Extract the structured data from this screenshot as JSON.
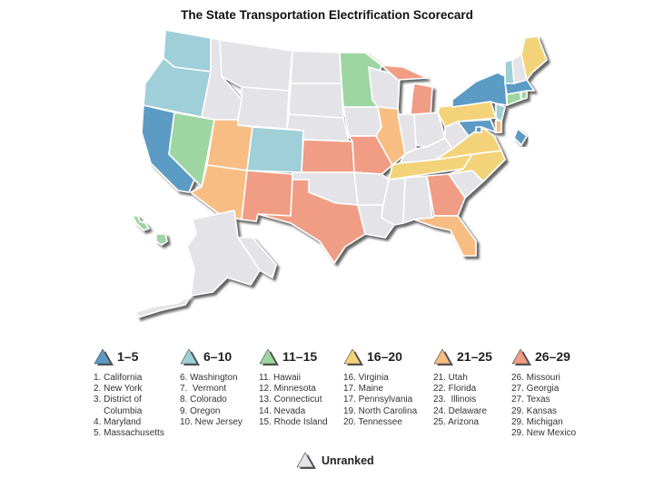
{
  "title": "The State Transportation Electrification Scorecard",
  "colors": {
    "tier_1_5": "#5b9bc4",
    "tier_6_10": "#9fcfd8",
    "tier_11_15": "#9ed6a2",
    "tier_16_20": "#f3d37a",
    "tier_21_25": "#f7bd82",
    "tier_26_29": "#f19c84",
    "unranked": "#e4e4e8",
    "shadow": "#555555"
  },
  "legend": [
    {
      "label": "1–5",
      "color_key": "tier_1_5",
      "items": [
        "1. California",
        "2. New York",
        "3. District of",
        "    Columbia",
        "4. Maryland",
        "5. Massachusetts"
      ]
    },
    {
      "label": "6–10",
      "color_key": "tier_6_10",
      "items": [
        "6. Washington",
        "7.  Vermont",
        "8. Colorado",
        "9. Oregon",
        "10. New Jersey"
      ]
    },
    {
      "label": "11–15",
      "color_key": "tier_11_15",
      "items": [
        "11. Hawaii",
        "12. Minnesota",
        "13. Connecticut",
        "14. Nevada",
        "15. Rhode Island"
      ]
    },
    {
      "label": "16–20",
      "color_key": "tier_16_20",
      "items": [
        "16. Virginia",
        "17. Maine",
        "17. Pennsylvania",
        "19. North Carolina",
        "20. Tennessee"
      ]
    },
    {
      "label": "21–25",
      "color_key": "tier_21_25",
      "items": [
        "21. Utah",
        "22. Florida",
        "23.  Illinois",
        "24. Delaware",
        "25. Arizona"
      ]
    },
    {
      "label": "26–29",
      "color_key": "tier_26_29",
      "items": [
        "26. Missouri",
        "27. Georgia",
        "27. Texas",
        "29. Kansas",
        "29. Michigan",
        "29. New Mexico"
      ]
    }
  ],
  "unranked_label": "Unranked"
}
